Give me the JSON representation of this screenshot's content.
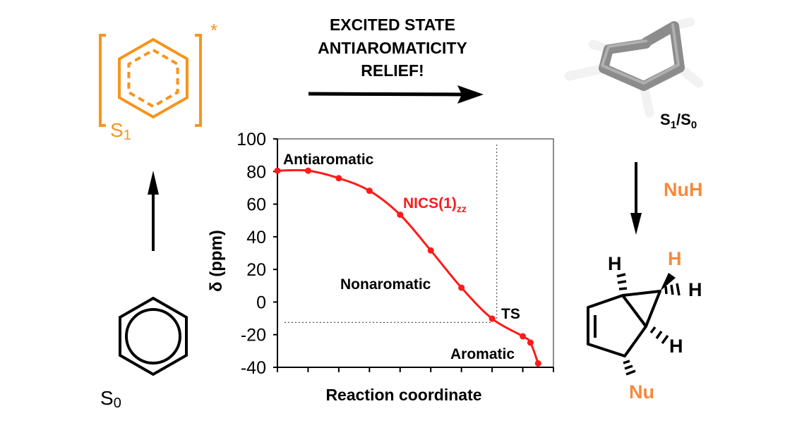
{
  "colors": {
    "orange": "#f7941d",
    "nu_orange": "#f58a3c",
    "curve": "#ff1a1a",
    "black": "#000000",
    "tube": "#8c8c8c"
  },
  "left": {
    "excited_label": "S",
    "excited_sub": "1",
    "excited_star": "*",
    "ground_label": "S",
    "ground_sub": "0"
  },
  "top": {
    "lines": [
      "EXCITED STATE",
      "ANTIAROMATICITY",
      "RELIEF!"
    ]
  },
  "right": {
    "state_label_a": "S",
    "state_sub_a": "1",
    "state_slash": "/",
    "state_label_b": "S",
    "state_sub_b": "0",
    "reagent": "NuH",
    "product_atoms": {
      "h_top_left": "H",
      "h_orange": "H",
      "h_right": "H",
      "h_lower": "H",
      "nu": "Nu"
    }
  },
  "chart_data": {
    "type": "line",
    "xlabel": "Reaction coordinate",
    "ylabel": "δ (ppm)",
    "ylim": [
      -40,
      100
    ],
    "yticks": [
      100,
      80,
      60,
      40,
      20,
      0,
      -20,
      -40
    ],
    "xlim": [
      0,
      9
    ],
    "series": [
      {
        "name": "NICS(1)",
        "name_sub": "zz",
        "x": [
          0,
          1,
          2,
          3,
          4,
          5,
          6,
          7,
          8,
          8.25,
          8.5
        ],
        "y": [
          80.5,
          80.5,
          75.9,
          68.2,
          53.5,
          31.6,
          8.8,
          -10.2,
          -21,
          -24.9,
          -37.6
        ]
      }
    ],
    "annotations": [
      "Antiaromatic",
      "Nonaromatic",
      "TS",
      "Aromatic"
    ],
    "ts_marker": {
      "x": 7.15,
      "y": -12.5
    },
    "grid": false
  }
}
